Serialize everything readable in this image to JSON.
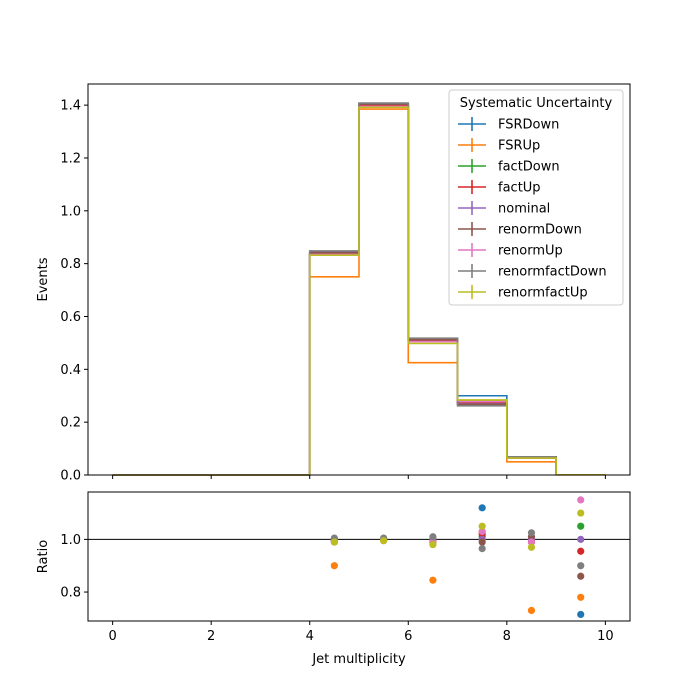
{
  "chart_data": {
    "type": "step-histogram-with-ratio",
    "xlabel": "Jet multiplicity",
    "top": {
      "ylabel": "Events",
      "ylim": [
        0,
        1.48
      ],
      "yticks": [
        0.0,
        0.2,
        0.4,
        0.6,
        0.8,
        1.0,
        1.2,
        1.4
      ],
      "ytick_labels": [
        "0.0",
        "0.2",
        "0.4",
        "0.6",
        "0.8",
        "1.0",
        "1.2",
        "1.4"
      ]
    },
    "bottom": {
      "ylabel": "Ratio",
      "ylim": [
        0.69,
        1.18
      ],
      "yticks": [
        0.8,
        1.0
      ],
      "ytick_labels": [
        "0.8",
        "1.0"
      ],
      "reference_line": 1.0
    },
    "xlim": [
      -0.5,
      10.5
    ],
    "xticks": [
      0,
      2,
      4,
      6,
      8,
      10
    ],
    "xtick_labels": [
      "0",
      "2",
      "4",
      "6",
      "8",
      "10"
    ],
    "bin_edges": [
      0,
      1,
      2,
      3,
      4,
      5,
      6,
      7,
      8,
      9,
      10
    ],
    "ratio_x": [
      4.5,
      5.5,
      6.5,
      7.5,
      8.5,
      9.5
    ],
    "legend": {
      "title": "Systematic Uncertainty",
      "placement": "top-right"
    },
    "series": [
      {
        "name": "FSRDown",
        "color": "#1f77b4",
        "values": [
          0,
          0,
          0,
          0,
          0.835,
          1.4,
          0.51,
          0.3,
          0.065,
          0.001
        ],
        "ratio": [
          0.99,
          1.0,
          0.99,
          1.12,
          1.0,
          0.715
        ]
      },
      {
        "name": "FSRUp",
        "color": "#ff7f0e",
        "values": [
          0,
          0,
          0,
          0,
          0.75,
          1.385,
          0.425,
          0.28,
          0.05,
          0.0008
        ],
        "ratio": [
          0.9,
          0.995,
          0.845,
          1.03,
          0.73,
          0.78
        ]
      },
      {
        "name": "factDown",
        "color": "#2ca02c",
        "values": [
          0,
          0,
          0,
          0,
          0.838,
          1.402,
          0.508,
          0.278,
          0.066,
          0.001
        ],
        "ratio": [
          0.995,
          1.0,
          0.99,
          1.01,
          1.0,
          1.05
        ]
      },
      {
        "name": "factUp",
        "color": "#d62728",
        "values": [
          0,
          0,
          0,
          0,
          0.836,
          1.398,
          0.507,
          0.275,
          0.064,
          0.001
        ],
        "ratio": [
          0.995,
          1.0,
          0.99,
          1.02,
          0.99,
          0.955
        ]
      },
      {
        "name": "nominal",
        "color": "#9467bd",
        "values": [
          0,
          0,
          0,
          0,
          0.845,
          1.405,
          0.515,
          0.27,
          0.066,
          0.001
        ],
        "ratio": [
          1.0,
          1.0,
          1.0,
          1.0,
          1.0,
          1.0
        ]
      },
      {
        "name": "renormDown",
        "color": "#8c564b",
        "values": [
          0,
          0,
          0,
          0,
          0.842,
          1.404,
          0.512,
          0.268,
          0.068,
          0.001
        ],
        "ratio": [
          1.0,
          1.0,
          1.0,
          0.99,
          1.01,
          0.86
        ]
      },
      {
        "name": "renormUp",
        "color": "#e377c2",
        "values": [
          0,
          0,
          0,
          0,
          0.835,
          1.395,
          0.505,
          0.278,
          0.065,
          0.001
        ],
        "ratio": [
          0.995,
          1.0,
          0.99,
          1.03,
          0.99,
          1.15
        ]
      },
      {
        "name": "renormfactDown",
        "color": "#7f7f7f",
        "values": [
          0,
          0,
          0,
          0,
          0.848,
          1.408,
          0.518,
          0.262,
          0.069,
          0.001
        ],
        "ratio": [
          1.005,
          1.005,
          1.01,
          0.965,
          1.025,
          0.9
        ]
      },
      {
        "name": "renormfactUp",
        "color": "#bcbd22",
        "values": [
          0,
          0,
          0,
          0,
          0.832,
          1.392,
          0.498,
          0.284,
          0.064,
          0.001
        ],
        "ratio": [
          0.99,
          0.995,
          0.98,
          1.05,
          0.97,
          1.1
        ]
      }
    ]
  }
}
